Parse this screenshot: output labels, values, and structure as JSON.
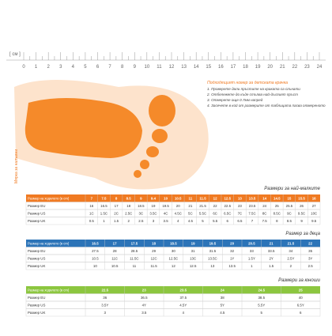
{
  "ruler": {
    "unit": "[ см ]",
    "labels": [
      "0",
      "1",
      "2",
      "3",
      "4",
      "5",
      "6",
      "7",
      "8",
      "9",
      "10",
      "11",
      "12",
      "13",
      "14",
      "15",
      "16",
      "17",
      "18",
      "19",
      "20",
      "21",
      "22",
      "23",
      "24"
    ]
  },
  "instructions": {
    "title": "Подходящият номер за детската крачка",
    "steps": [
      "1. Проверете дали пръстите на краката са сгънати",
      "2. Отбележете до къде стъпва най-дългият пръст",
      "3. Отмерете още 0.7мм напред",
      "4. Засечете в кой от размерите от таблицата пасва отмереното"
    ]
  },
  "side_label": "Мярка за налъмни",
  "tables": [
    {
      "title": "Размери за най-малките",
      "color": "#f07a22",
      "header_label": "Размер на ходилото (в cm)",
      "sizes": [
        "7",
        "7.5",
        "8",
        "8.5",
        "9",
        "9.4",
        "10",
        "10.5",
        "11",
        "11.5",
        "12",
        "12.5",
        "13",
        "13.5",
        "14",
        "14.5",
        "15",
        "15.5",
        "16"
      ],
      "rows": [
        {
          "label": "Размер EU",
          "values": [
            "16",
            "16.5",
            "17",
            "18",
            "18.5",
            "19",
            "19.5",
            "20",
            "21",
            "21.5",
            "22",
            "22.5",
            "23",
            "23.5",
            "24",
            "25",
            "25.5",
            "26",
            "27"
          ]
        },
        {
          "label": "Размер US",
          "values": [
            "1C",
            "1.5C",
            "2C",
            "2.5C",
            "3C",
            "3.5C",
            "4C",
            "4.5C",
            "5C",
            "5.5C",
            "6C",
            "6.5C",
            "7C",
            "7.5C",
            "8C",
            "8.5C",
            "9C",
            "9.5C",
            "10C"
          ]
        },
        {
          "label": "Размер UK",
          "values": [
            "0.5",
            "1",
            "1.5",
            "2",
            "2.5",
            "3",
            "3.5",
            "4",
            "4.5",
            "5",
            "5.5",
            "6",
            "6.5",
            "7",
            "7.5",
            "8",
            "8.5",
            "9",
            "9.5"
          ]
        }
      ]
    },
    {
      "title": "Размер за деца",
      "color": "#2c74b8",
      "header_label": "Размер на ходилото (в cm)",
      "sizes": [
        "16.5",
        "17",
        "17.5",
        "18",
        "18.5",
        "19",
        "19.5",
        "20",
        "20.5",
        "21",
        "21.5",
        "22"
      ],
      "rows": [
        {
          "label": "Размер EU",
          "values": [
            "27.5",
            "28",
            "28.5",
            "29",
            "30",
            "31",
            "31.5",
            "32",
            "33",
            "33.5",
            "34",
            "35"
          ]
        },
        {
          "label": "Размер US",
          "values": [
            "10.5",
            "11C",
            "11.5C",
            "12C",
            "12.5C",
            "13C",
            "13.5C",
            "1Y",
            "1.5Y",
            "2Y",
            "2.5Y",
            "3Y"
          ]
        },
        {
          "label": "Размер UK",
          "values": [
            "10",
            "10.5",
            "11",
            "11.5",
            "12",
            "12.5",
            "13",
            "13.5",
            "1",
            "1.5",
            "2",
            "2.5"
          ]
        }
      ]
    },
    {
      "title": "Размери за юноши",
      "color": "#8cc63f",
      "header_label": "Размер на ходилото (в cm)",
      "sizes": [
        "22.5",
        "23",
        "23.5",
        "24",
        "24.5",
        "25"
      ],
      "rows": [
        {
          "label": "Размер EU",
          "values": [
            "36",
            "36.5",
            "37.5",
            "38",
            "38.5",
            "40"
          ]
        },
        {
          "label": "Размер US",
          "values": [
            "3.5Y",
            "4Y",
            "4.5Y",
            "5Y",
            "5.5Y",
            "6.5Y"
          ]
        },
        {
          "label": "Размер UK",
          "values": [
            "3",
            "3.5",
            "4",
            "4.5",
            "5",
            "6"
          ]
        }
      ]
    }
  ]
}
